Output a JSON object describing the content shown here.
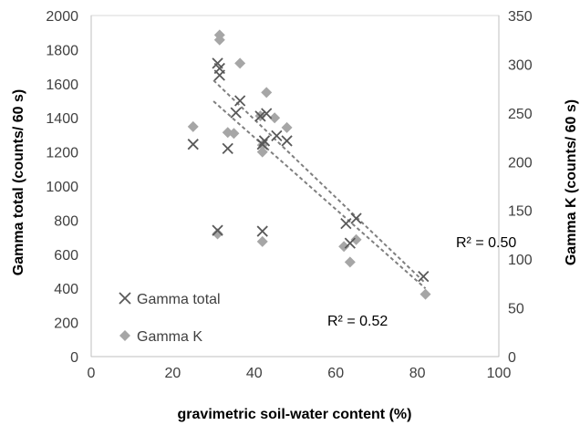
{
  "chart_data": {
    "type": "scatter",
    "xlabel": "gravimetric soil-water content (%)",
    "ylabel": "Gamma total (counts/ 60 s)",
    "y2label": "Gamma K (counts/ 60 s)",
    "xlim": [
      0,
      100
    ],
    "ylim": [
      0,
      2000
    ],
    "y2lim": [
      0,
      350
    ],
    "x_ticks": [
      0,
      20,
      40,
      60,
      80,
      100
    ],
    "y_ticks": [
      0,
      200,
      400,
      600,
      800,
      1000,
      1200,
      1400,
      1600,
      1800,
      2000
    ],
    "y2_ticks": [
      0,
      50,
      100,
      150,
      200,
      250,
      300,
      350
    ],
    "grid": false,
    "legend_position": "bottom-left",
    "series": [
      {
        "name": "Gamma total",
        "axis": "left",
        "marker": "x",
        "color": "#595959",
        "x": [
          25,
          31,
          31.5,
          31.5,
          33.5,
          35.5,
          36.5,
          41.5,
          42,
          42.5,
          43,
          45.5,
          48,
          31,
          42,
          62.5,
          63.5,
          65,
          81.5
        ],
        "y": [
          1245,
          1720,
          1650,
          1690,
          1220,
          1430,
          1500,
          1410,
          1245,
          1265,
          1425,
          1295,
          1265,
          740,
          735,
          780,
          665,
          810,
          470
        ],
        "trendline": {
          "x": [
            30,
            82
          ],
          "y": [
            1620,
            430
          ]
        },
        "r2_label": "R² = 0.50"
      },
      {
        "name": "Gamma K",
        "axis": "right",
        "marker": "diamond",
        "color": "#a6a6a6",
        "x": [
          25,
          31,
          31.5,
          31.5,
          33.5,
          36.5,
          35,
          41.5,
          42,
          42,
          43,
          45,
          48,
          31,
          42,
          62,
          63.5,
          65,
          82
        ],
        "y": [
          236,
          126,
          330,
          325,
          230,
          301,
          229,
          247,
          217,
          210,
          271,
          245,
          235,
          126,
          118,
          113,
          97,
          120,
          64
        ],
        "trendline": {
          "x": [
            30,
            82
          ],
          "y": [
            262,
            70
          ]
        },
        "r2_label": "R² = 0.52"
      }
    ]
  }
}
